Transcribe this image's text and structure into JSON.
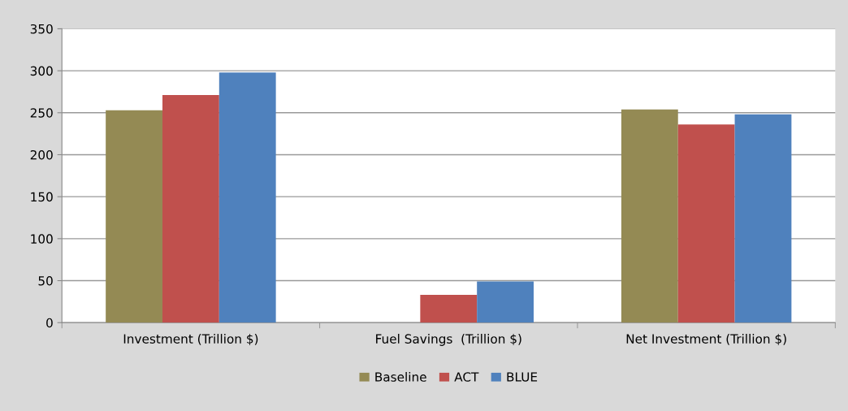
{
  "chart_data": {
    "type": "bar",
    "categories": [
      "Investment (Trillion $)",
      "Fuel Savings  (Trillion $)",
      "Net Investment (Trillion $)"
    ],
    "series": [
      {
        "name": "Baseline",
        "color": "#948a54",
        "values": [
          253,
          0,
          254
        ]
      },
      {
        "name": "ACT",
        "color": "#c0504d",
        "values": [
          271,
          33,
          236
        ]
      },
      {
        "name": "BLUE",
        "color": "#4f81bd",
        "values": [
          298,
          49,
          248
        ]
      }
    ],
    "ylim": [
      0,
      350
    ],
    "yticks": [
      0,
      50,
      100,
      150,
      200,
      250,
      300,
      350
    ],
    "grid": "y",
    "legend": "bottom"
  }
}
